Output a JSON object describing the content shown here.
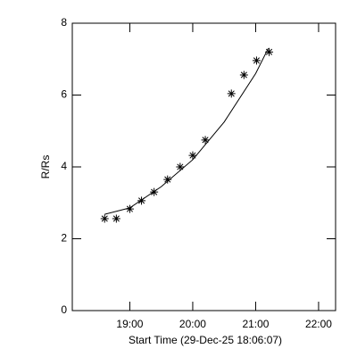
{
  "chart_data": {
    "type": "scatter",
    "x_label": "Start Time (29-Dec-25 18:06:07)",
    "y_label": "R/Rs",
    "xlim": [
      18.086,
      22.27
    ],
    "ylim": [
      0,
      8
    ],
    "xticks": [
      {
        "value": 19,
        "label": "19:00"
      },
      {
        "value": 20,
        "label": "20:00"
      },
      {
        "value": 21,
        "label": "21:00"
      },
      {
        "value": 22,
        "label": "22:00"
      }
    ],
    "yticks": [
      0,
      2,
      4,
      6,
      8
    ],
    "series": [
      {
        "marker": "asterisk",
        "color": "#000000",
        "x": [
          18.6,
          18.786,
          19.0,
          19.186,
          19.386,
          19.6,
          19.8,
          20.0,
          20.2,
          20.614,
          20.814,
          21.014,
          21.214
        ],
        "values": [
          2.56,
          2.56,
          2.83,
          3.06,
          3.3,
          3.65,
          4.0,
          4.32,
          4.75,
          6.04,
          6.56,
          6.96,
          7.2
        ]
      },
      {
        "marker": "line",
        "color": "#000000",
        "x": [
          18.6,
          19.0,
          19.5,
          20.0,
          20.5,
          21.0,
          21.2
        ],
        "values": [
          2.68,
          2.86,
          3.45,
          4.2,
          5.25,
          6.6,
          7.3
        ]
      }
    ]
  }
}
